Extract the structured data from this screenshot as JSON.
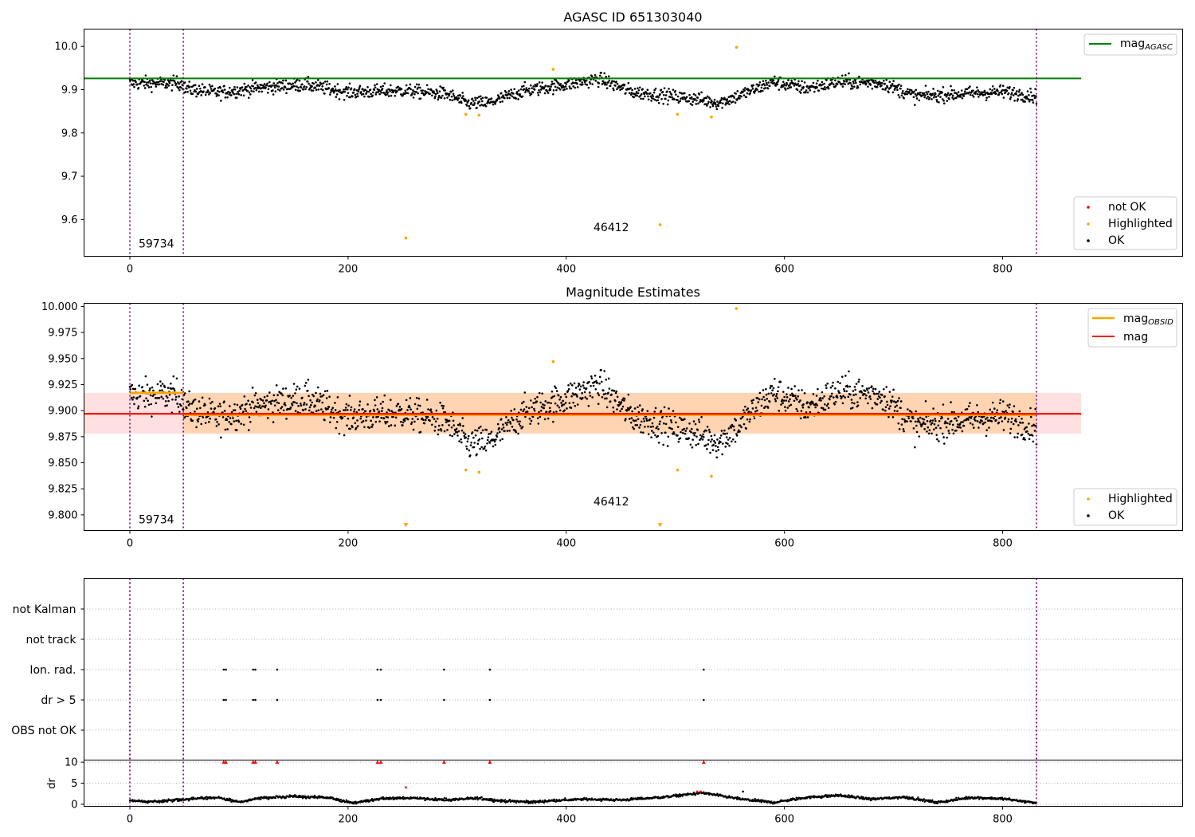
{
  "chart_data": [
    {
      "type": "scatter",
      "title": "AGASC ID 651303040",
      "xlabel": "",
      "ylabel": "",
      "xlim": [
        -42,
        965
      ],
      "ylim": [
        9.515,
        10.04
      ],
      "xticks": [
        0,
        200,
        400,
        600,
        800
      ],
      "yticks": [
        9.6,
        9.7,
        9.8,
        9.9,
        10.0
      ],
      "ytick_labels": [
        "9.6",
        "9.7",
        "9.8",
        "9.9",
        "10.0"
      ],
      "vlines": [
        0,
        49,
        831
      ],
      "hline": {
        "name": "mag_AGASC",
        "label_main": "mag",
        "label_sub": "AGASC",
        "y": 9.926,
        "x_range": [
          -42,
          872
        ],
        "color": "#008000"
      },
      "annotations": [
        {
          "text": "59734",
          "x": 8,
          "y": 9.535
        },
        {
          "text": "46412",
          "x": 425,
          "y": 9.573
        }
      ],
      "legend_lines": [
        {
          "label_main": "mag",
          "label_sub": "AGASC",
          "color": "#008000"
        }
      ],
      "legend_points": [
        {
          "label": "not OK",
          "color": "#ff0000"
        },
        {
          "label": "Highlighted",
          "color": "#ffa500"
        },
        {
          "label": "OK",
          "color": "#000000"
        }
      ],
      "legend_placement": "upper right / lower right",
      "highlighted_points": [
        {
          "x": 253,
          "y": 9.557
        },
        {
          "x": 308,
          "y": 9.843
        },
        {
          "x": 320,
          "y": 9.841
        },
        {
          "x": 388,
          "y": 9.947
        },
        {
          "x": 486,
          "y": 9.588
        },
        {
          "x": 502,
          "y": 9.843
        },
        {
          "x": 533,
          "y": 9.837
        },
        {
          "x": 556,
          "y": 9.998
        }
      ],
      "ok_series": {
        "name": "OK",
        "x_range": [
          0,
          831
        ],
        "y_mean_profile": [
          [
            0,
            9.915
          ],
          [
            49,
            9.915
          ],
          [
            50,
            9.903
          ],
          [
            80,
            9.893
          ],
          [
            120,
            9.905
          ],
          [
            160,
            9.912
          ],
          [
            200,
            9.894
          ],
          [
            250,
            9.898
          ],
          [
            290,
            9.89
          ],
          [
            310,
            9.868
          ],
          [
            330,
            9.87
          ],
          [
            360,
            9.897
          ],
          [
            400,
            9.912
          ],
          [
            430,
            9.925
          ],
          [
            460,
            9.895
          ],
          [
            520,
            9.878
          ],
          [
            540,
            9.87
          ],
          [
            560,
            9.888
          ],
          [
            590,
            9.918
          ],
          [
            620,
            9.903
          ],
          [
            650,
            9.918
          ],
          [
            690,
            9.915
          ],
          [
            720,
            9.885
          ],
          [
            760,
            9.89
          ],
          [
            800,
            9.895
          ],
          [
            831,
            9.885
          ]
        ],
        "scatter": 0.013
      }
    },
    {
      "type": "scatter",
      "title": "Magnitude Estimates",
      "xlabel": "",
      "ylabel": "",
      "xlim": [
        -42,
        965
      ],
      "ylim": [
        9.785,
        10.003
      ],
      "xticks": [
        0,
        200,
        400,
        600,
        800
      ],
      "yticks": [
        9.8,
        9.825,
        9.85,
        9.875,
        9.9,
        9.925,
        9.95,
        9.975,
        10.0
      ],
      "ytick_labels": [
        "9.800",
        "9.825",
        "9.850",
        "9.875",
        "9.900",
        "9.925",
        "9.950",
        "9.975",
        "10.000"
      ],
      "vlines": [
        0,
        49,
        831
      ],
      "mag": {
        "name": "mag",
        "y": 9.897,
        "band": [
          9.878,
          9.917
        ],
        "x_range": [
          -42,
          872
        ],
        "color": "#ff0000"
      },
      "mag_obsid": [
        {
          "x_range": [
            0,
            49
          ],
          "y": 9.917,
          "band": [
            9.917,
            9.918
          ]
        },
        {
          "x_range": [
            49,
            831
          ],
          "y": 9.896,
          "band": [
            9.878,
            9.917
          ]
        }
      ],
      "annotations": [
        {
          "text": "59734",
          "x": 8,
          "y": 9.792
        },
        {
          "text": "46412",
          "x": 425,
          "y": 9.809
        }
      ],
      "legend_lines": [
        {
          "label_main": "mag",
          "label_sub": "OBSID",
          "color": "#ffa500"
        },
        {
          "label_main": "mag",
          "label_sub": "",
          "color": "#ff0000"
        }
      ],
      "legend_points": [
        {
          "label": "Highlighted",
          "color": "#ffa500"
        },
        {
          "label": "OK",
          "color": "#000000"
        }
      ],
      "highlighted_points": [
        {
          "x": 308,
          "y": 9.843
        },
        {
          "x": 320,
          "y": 9.841
        },
        {
          "x": 388,
          "y": 9.947
        },
        {
          "x": 502,
          "y": 9.843
        },
        {
          "x": 533,
          "y": 9.837
        },
        {
          "x": 556,
          "y": 9.998
        }
      ],
      "clipped_markers": [
        {
          "x": 253,
          "y": 9.789
        },
        {
          "x": 486,
          "y": 9.789
        }
      ]
    },
    {
      "type": "scatter",
      "title": "",
      "xlabel": "",
      "ylabel": "",
      "xlim": [
        -42,
        965
      ],
      "categories": [
        "not Kalman",
        "not track",
        "Ion. rad.",
        "dr > 5",
        "OBS not OK"
      ],
      "vlines": [
        0,
        49,
        831
      ],
      "flag_points": {
        "Ion. rad.": [
          86,
          88,
          113,
          115,
          135,
          227,
          230,
          288,
          330,
          526
        ],
        "dr > 5": [
          86,
          88,
          113,
          115,
          135,
          227,
          230,
          288,
          330,
          526
        ]
      }
    },
    {
      "type": "scatter",
      "title": "",
      "xlabel": "",
      "ylabel": "dr",
      "xlim": [
        -42,
        965
      ],
      "ylim": [
        -0.5,
        10.5
      ],
      "yticks": [
        0,
        5,
        10
      ],
      "ytick_labels": [
        "0",
        "5",
        "10"
      ],
      "xticks": [
        0,
        200,
        400,
        600,
        800
      ],
      "vlines": [
        0,
        49,
        831
      ],
      "capped_points": [
        86,
        88,
        113,
        115,
        135,
        227,
        230,
        288,
        330,
        526
      ],
      "capped_value": 10,
      "red_points": [
        {
          "x": 253,
          "y": 4.0
        },
        {
          "x": 520,
          "y": 3.0
        },
        {
          "x": 523,
          "y": 3.0
        }
      ],
      "outlier_points": [
        {
          "x": 562,
          "y": 3.0
        }
      ],
      "ok_series": {
        "name": "OK",
        "x_range": [
          0,
          831
        ],
        "y_mean_profile": [
          [
            0,
            0.8
          ],
          [
            20,
            0.6
          ],
          [
            45,
            1.0
          ],
          [
            60,
            1.3
          ],
          [
            80,
            1.6
          ],
          [
            100,
            0.5
          ],
          [
            120,
            1.5
          ],
          [
            150,
            1.8
          ],
          [
            180,
            1.6
          ],
          [
            205,
            0.3
          ],
          [
            230,
            1.3
          ],
          [
            260,
            1.5
          ],
          [
            290,
            1.0
          ],
          [
            320,
            1.4
          ],
          [
            340,
            0.8
          ],
          [
            370,
            0.5
          ],
          [
            390,
            0.9
          ],
          [
            420,
            1.2
          ],
          [
            450,
            1.0
          ],
          [
            490,
            1.7
          ],
          [
            525,
            2.7
          ],
          [
            560,
            1.2
          ],
          [
            590,
            0.4
          ],
          [
            620,
            1.6
          ],
          [
            650,
            2.1
          ],
          [
            680,
            1.2
          ],
          [
            710,
            1.7
          ],
          [
            740,
            0.4
          ],
          [
            770,
            1.6
          ],
          [
            800,
            1.3
          ],
          [
            831,
            0.3
          ]
        ],
        "scatter": 0.25
      }
    }
  ]
}
